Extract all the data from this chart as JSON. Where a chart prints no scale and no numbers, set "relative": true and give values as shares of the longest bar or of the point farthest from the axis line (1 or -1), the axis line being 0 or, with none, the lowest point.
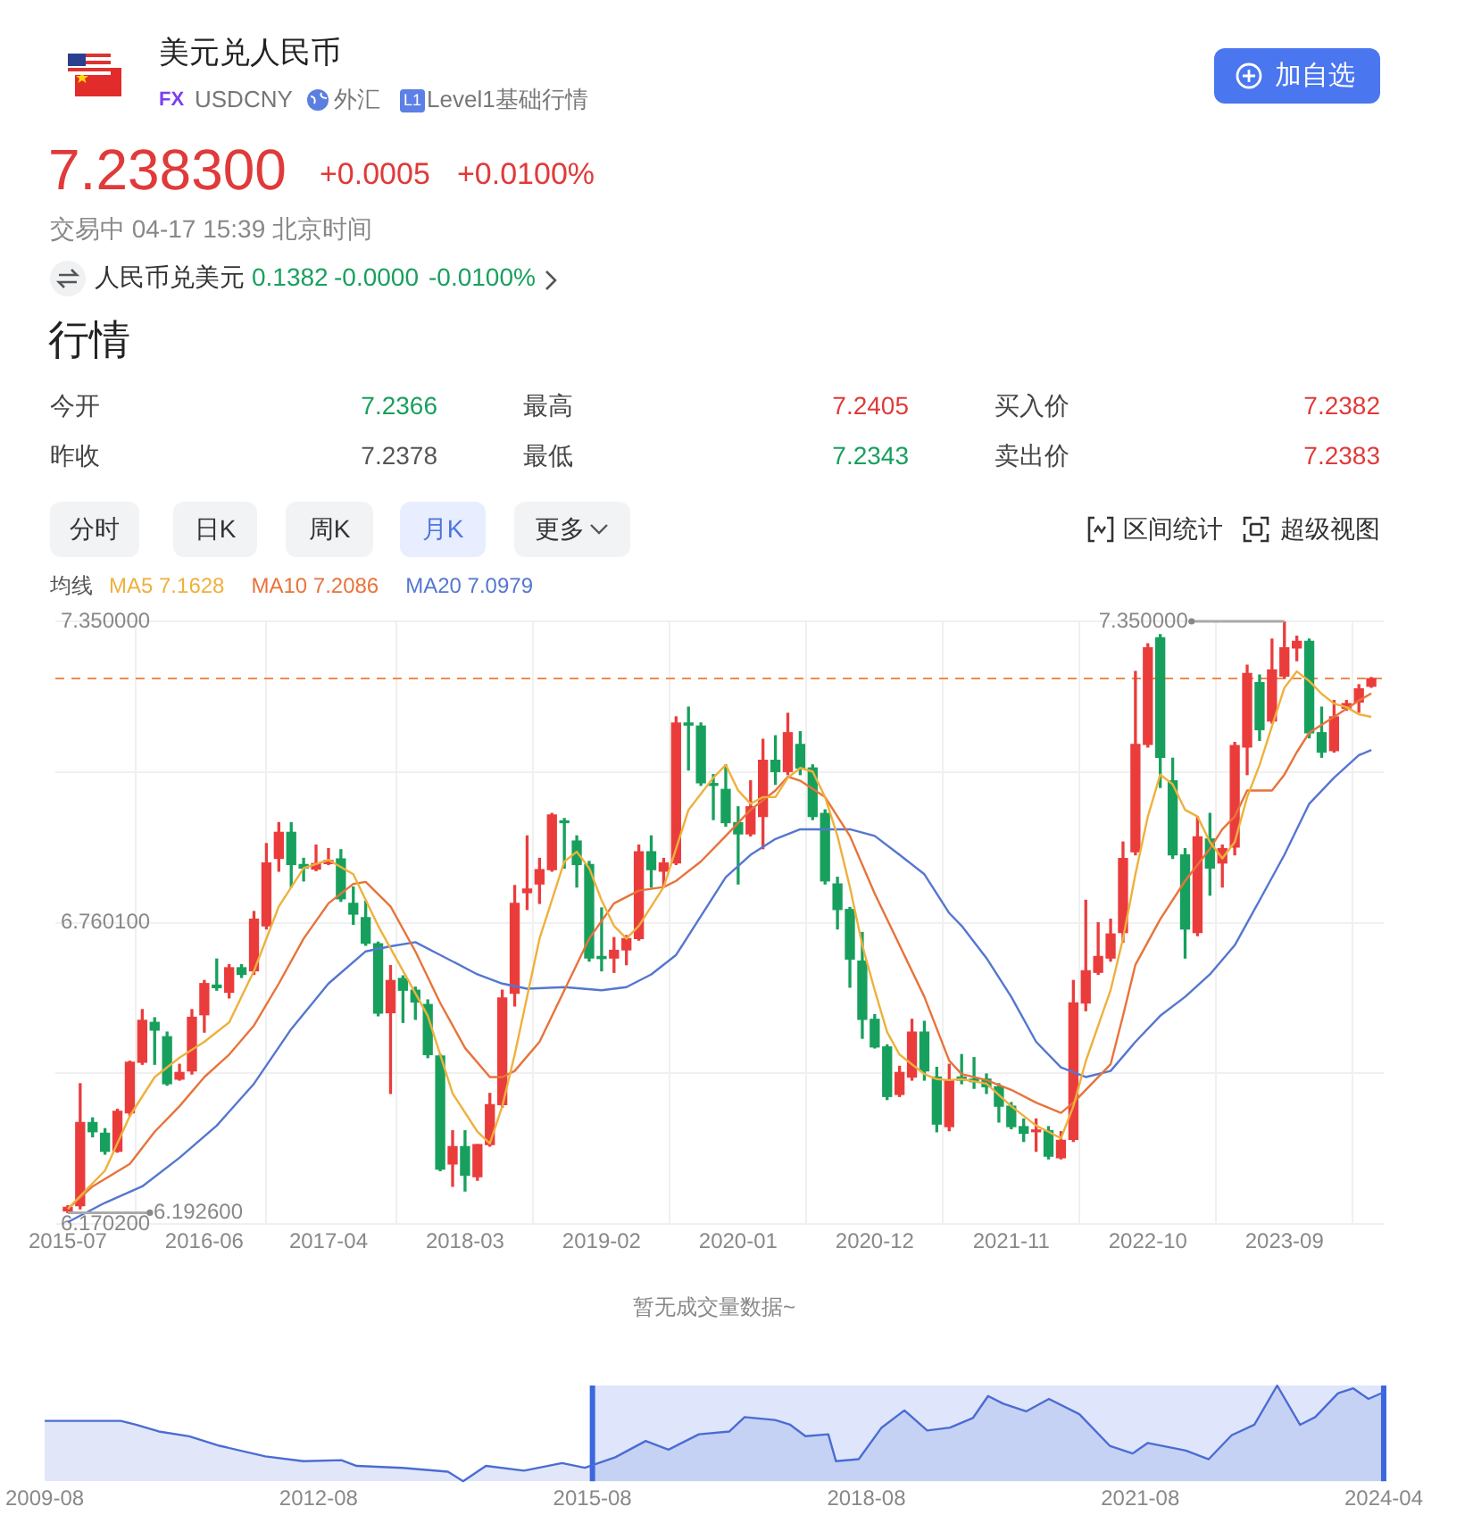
{
  "chart_data": [
    {
      "type": "candlestick",
      "title": "美元兑人民币",
      "annotations": [
        "FX",
        "USDCNY",
        "外汇",
        "L1",
        "Level1基础行情",
        "7.238300",
        "+0.0005",
        "+0.0100%",
        "交易中 04-17 15:39 北京时间",
        "人民币兑美元",
        "0.1382",
        "-0.0000",
        "-0.0100%",
        "行情",
        "今开",
        "7.2366",
        "最高",
        "7.2405",
        "买入价",
        "7.2382",
        "昨收",
        "7.2378",
        "最低",
        "7.2343",
        "卖出价",
        "7.2383",
        "分时",
        "日K",
        "周K",
        "月K",
        "更多",
        "区间统计",
        "超级视图",
        "加自选",
        "均线",
        "暂无成交量数据~",
        {
          "text": "7.350000",
          "x": "2023-09",
          "y": 7.35
        },
        {
          "text": "6.192600",
          "x": "2015-07",
          "y": 6.1926
        }
      ],
      "x": [
        "2015-07",
        "2015-08",
        "2015-09",
        "2015-10",
        "2015-11",
        "2015-12",
        "2016-01",
        "2016-02",
        "2016-03",
        "2016-04",
        "2016-05",
        "2016-06",
        "2016-07",
        "2016-08",
        "2016-09",
        "2016-10",
        "2016-11",
        "2016-12",
        "2017-01",
        "2017-02",
        "2017-03",
        "2017-04",
        "2017-05",
        "2017-06",
        "2017-07",
        "2017-08",
        "2017-09",
        "2017-10",
        "2017-11",
        "2017-12",
        "2018-01",
        "2018-02",
        "2018-03",
        "2018-04",
        "2018-05",
        "2018-06",
        "2018-07",
        "2018-08",
        "2018-09",
        "2018-10",
        "2018-11",
        "2018-12",
        "2019-01",
        "2019-02",
        "2019-03",
        "2019-04",
        "2019-05",
        "2019-06",
        "2019-07",
        "2019-08",
        "2019-09",
        "2019-10",
        "2019-11",
        "2019-12",
        "2020-01",
        "2020-02",
        "2020-03",
        "2020-04",
        "2020-05",
        "2020-06",
        "2020-07",
        "2020-08",
        "2020-09",
        "2020-10",
        "2020-11",
        "2020-12",
        "2021-01",
        "2021-02",
        "2021-03",
        "2021-04",
        "2021-05",
        "2021-06",
        "2021-07",
        "2021-08",
        "2021-09",
        "2021-10",
        "2021-11",
        "2021-12",
        "2022-01",
        "2022-02",
        "2022-03",
        "2022-04",
        "2022-05",
        "2022-06",
        "2022-07",
        "2022-08",
        "2022-09",
        "2022-10",
        "2022-11",
        "2022-12",
        "2023-01",
        "2023-02",
        "2023-03",
        "2023-04",
        "2023-05",
        "2023-06",
        "2023-07",
        "2023-08",
        "2023-09",
        "2023-10",
        "2023-11",
        "2023-12",
        "2024-01",
        "2024-02",
        "2024-03",
        "2024-04"
      ],
      "ohlc": [
        [
          6.196,
          6.206,
          6.1926,
          6.203
        ],
        [
          6.206,
          6.445,
          6.2,
          6.369
        ],
        [
          6.369,
          6.378,
          6.341,
          6.351
        ],
        [
          6.348,
          6.357,
          6.307,
          6.313
        ],
        [
          6.313,
          6.395,
          6.311,
          6.391
        ],
        [
          6.388,
          6.489,
          6.382,
          6.487
        ],
        [
          6.487,
          6.59,
          6.483,
          6.569
        ],
        [
          6.565,
          6.574,
          6.483,
          6.55
        ],
        [
          6.537,
          6.546,
          6.442,
          6.445
        ],
        [
          6.454,
          6.483,
          6.452,
          6.467
        ],
        [
          6.47,
          6.59,
          6.464,
          6.575
        ],
        [
          6.58,
          6.647,
          6.546,
          6.641
        ],
        [
          6.638,
          6.689,
          6.628,
          6.633
        ],
        [
          6.624,
          6.678,
          6.613,
          6.672
        ],
        [
          6.672,
          6.678,
          6.653,
          6.659
        ],
        [
          6.666,
          6.782,
          6.659,
          6.767
        ],
        [
          6.754,
          6.915,
          6.748,
          6.877
        ],
        [
          6.886,
          6.956,
          6.861,
          6.937
        ],
        [
          6.937,
          6.956,
          6.83,
          6.874
        ],
        [
          6.874,
          6.886,
          6.842,
          6.867
        ],
        [
          6.865,
          6.912,
          6.862,
          6.876
        ],
        [
          6.876,
          6.905,
          6.874,
          6.882
        ],
        [
          6.885,
          6.903,
          6.802,
          6.807
        ],
        [
          6.798,
          6.83,
          6.757,
          6.777
        ],
        [
          6.77,
          6.802,
          6.716,
          6.72
        ],
        [
          6.719,
          6.722,
          6.578,
          6.583
        ],
        [
          6.584,
          6.676,
          6.426,
          6.647
        ],
        [
          6.651,
          6.656,
          6.565,
          6.628
        ],
        [
          6.628,
          6.634,
          6.571,
          6.605
        ],
        [
          6.6,
          6.609,
          6.496,
          6.502
        ],
        [
          6.499,
          6.502,
          6.275,
          6.278
        ],
        [
          6.288,
          6.353,
          6.244,
          6.322
        ],
        [
          6.322,
          6.353,
          6.235,
          6.266
        ],
        [
          6.263,
          6.326,
          6.256,
          6.326
        ],
        [
          6.326,
          6.426,
          6.323,
          6.404
        ],
        [
          6.404,
          6.628,
          6.399,
          6.613
        ],
        [
          6.622,
          6.833,
          6.597,
          6.798
        ],
        [
          6.819,
          6.93,
          6.786,
          6.826
        ],
        [
          6.836,
          6.886,
          6.798,
          6.864
        ],
        [
          6.864,
          6.974,
          6.861,
          6.971
        ],
        [
          6.959,
          6.964,
          6.867,
          6.956
        ],
        [
          6.92,
          6.93,
          6.83,
          6.874
        ],
        [
          6.874,
          6.88,
          6.685,
          6.691
        ],
        [
          6.694,
          6.789,
          6.666,
          6.69
        ],
        [
          6.691,
          6.731,
          6.663,
          6.706
        ],
        [
          6.707,
          6.735,
          6.678,
          6.729
        ],
        [
          6.729,
          6.912,
          6.726,
          6.899
        ],
        [
          6.899,
          6.93,
          6.83,
          6.864
        ],
        [
          6.861,
          6.886,
          6.83,
          6.877
        ],
        [
          6.877,
          7.163,
          6.874,
          7.151
        ],
        [
          7.151,
          7.182,
          7.059,
          7.147
        ],
        [
          7.145,
          7.151,
          7.029,
          7.034
        ],
        [
          7.031,
          7.05,
          6.962,
          7.029
        ],
        [
          7.021,
          7.069,
          6.949,
          6.956
        ],
        [
          6.956,
          6.987,
          6.836,
          6.934
        ],
        [
          6.934,
          7.038,
          6.93,
          6.987
        ],
        [
          6.968,
          7.119,
          6.905,
          7.078
        ],
        [
          7.078,
          7.126,
          7.031,
          7.056
        ],
        [
          7.056,
          7.17,
          7.05,
          7.132
        ],
        [
          7.109,
          7.134,
          7.05,
          7.063
        ],
        [
          7.063,
          7.069,
          6.962,
          6.968
        ],
        [
          6.974,
          6.981,
          6.836,
          6.842
        ],
        [
          6.836,
          6.849,
          6.748,
          6.786
        ],
        [
          6.786,
          6.79,
          6.634,
          6.689
        ],
        [
          6.685,
          6.741,
          6.534,
          6.571
        ],
        [
          6.571,
          6.58,
          6.515,
          6.517
        ],
        [
          6.517,
          6.521,
          6.414,
          6.42
        ],
        [
          6.424,
          6.479,
          6.42,
          6.467
        ],
        [
          6.458,
          6.571,
          6.452,
          6.546
        ],
        [
          6.546,
          6.567,
          6.452,
          6.47
        ],
        [
          6.458,
          6.477,
          6.351,
          6.366
        ],
        [
          6.361,
          6.483,
          6.353,
          6.452
        ],
        [
          6.458,
          6.502,
          6.445,
          6.452
        ],
        [
          6.454,
          6.496,
          6.436,
          6.449
        ],
        [
          6.454,
          6.464,
          6.426,
          6.439
        ],
        [
          6.439,
          6.445,
          6.37,
          6.401
        ],
        [
          6.401,
          6.408,
          6.357,
          6.361
        ],
        [
          6.361,
          6.376,
          6.332,
          6.348
        ],
        [
          6.351,
          6.376,
          6.313,
          6.353
        ],
        [
          6.353,
          6.361,
          6.298,
          6.303
        ],
        [
          6.3,
          6.351,
          6.298,
          6.334
        ],
        [
          6.336,
          6.647,
          6.332,
          6.603
        ],
        [
          6.603,
          6.804,
          6.588,
          6.666
        ],
        [
          6.663,
          6.76,
          6.659,
          6.694
        ],
        [
          6.691,
          6.767,
          6.685,
          6.738
        ],
        [
          6.741,
          6.918,
          6.722,
          6.886
        ],
        [
          6.899,
          7.252,
          6.893,
          7.109
        ],
        [
          7.109,
          7.306,
          7.104,
          7.298
        ],
        [
          7.318,
          7.324,
          7.025,
          7.084
        ],
        [
          7.038,
          7.082,
          6.886,
          6.893
        ],
        [
          6.893,
          6.905,
          6.691,
          6.748
        ],
        [
          6.741,
          6.968,
          6.735,
          6.928
        ],
        [
          6.924,
          6.974,
          6.814,
          6.867
        ],
        [
          6.877,
          6.912,
          6.83,
          6.905
        ],
        [
          6.908,
          7.113,
          6.893,
          7.107
        ],
        [
          7.104,
          7.264,
          7.05,
          7.248
        ],
        [
          7.23,
          7.245,
          7.117,
          7.138
        ],
        [
          7.155,
          7.315,
          7.151,
          7.255
        ],
        [
          7.243,
          7.35,
          7.239,
          7.298
        ],
        [
          7.298,
          7.321,
          7.273,
          7.311
        ],
        [
          7.311,
          7.315,
          7.122,
          7.132
        ],
        [
          7.132,
          7.182,
          7.084,
          7.094
        ],
        [
          7.097,
          7.195,
          7.094,
          7.163
        ],
        [
          7.18,
          7.195,
          7.176,
          7.189
        ],
        [
          7.192,
          7.226,
          7.172,
          7.218
        ],
        [
          7.223,
          7.24,
          7.221,
          7.238
        ]
      ],
      "colors": [
        "#eb3c3c",
        "#eb3c3c",
        "#17a05d",
        "#17a05d",
        "#eb3c3c",
        "#eb3c3c",
        "#eb3c3c",
        "#17a05d",
        "#17a05d",
        "#eb3c3c",
        "#eb3c3c",
        "#eb3c3c",
        "#17a05d",
        "#eb3c3c",
        "#17a05d",
        "#eb3c3c",
        "#eb3c3c",
        "#eb3c3c",
        "#17a05d",
        "#17a05d",
        "#eb3c3c",
        "#eb3c3c",
        "#17a05d",
        "#17a05d",
        "#17a05d",
        "#17a05d",
        "#eb3c3c",
        "#17a05d",
        "#17a05d",
        "#17a05d",
        "#17a05d",
        "#eb3c3c",
        "#17a05d",
        "#eb3c3c",
        "#eb3c3c",
        "#eb3c3c",
        "#eb3c3c",
        "#eb3c3c",
        "#eb3c3c",
        "#eb3c3c",
        "#17a05d",
        "#17a05d",
        "#17a05d",
        "#17a05d",
        "#eb3c3c",
        "#eb3c3c",
        "#eb3c3c",
        "#17a05d",
        "#eb3c3c",
        "#eb3c3c",
        "#17a05d",
        "#17a05d",
        "#17a05d",
        "#17a05d",
        "#17a05d",
        "#eb3c3c",
        "#eb3c3c",
        "#17a05d",
        "#eb3c3c",
        "#17a05d",
        "#17a05d",
        "#17a05d",
        "#17a05d",
        "#17a05d",
        "#17a05d",
        "#17a05d",
        "#17a05d",
        "#eb3c3c",
        "#eb3c3c",
        "#17a05d",
        "#17a05d",
        "#eb3c3c",
        "#17a05d",
        "#17a05d",
        "#17a05d",
        "#17a05d",
        "#17a05d",
        "#17a05d",
        "#eb3c3c",
        "#17a05d",
        "#eb3c3c",
        "#eb3c3c",
        "#eb3c3c",
        "#eb3c3c",
        "#eb3c3c",
        "#eb3c3c",
        "#eb3c3c",
        "#eb3c3c",
        "#17a05d",
        "#17a05d",
        "#17a05d",
        "#eb3c3c",
        "#17a05d",
        "#eb3c3c",
        "#eb3c3c",
        "#eb3c3c",
        "#17a05d",
        "#eb3c3c",
        "#eb3c3c",
        "#eb3c3c",
        "#17a05d",
        "#17a05d",
        "#eb3c3c",
        "#eb3c3c",
        "#eb3c3c",
        "#eb3c3c"
      ],
      "series": [
        {
          "type": "line",
          "name": "MA5 7.1628",
          "color": "#eeb13c",
          "x": [
            "2015-07",
            "2015-10",
            "2015-12",
            "2016-02",
            "2016-04",
            "2016-06",
            "2016-08",
            "2016-10",
            "2016-12",
            "2017-02",
            "2017-04",
            "2017-06",
            "2017-08",
            "2017-10",
            "2017-12",
            "2018-02",
            "2018-04",
            "2018-05",
            "2018-06",
            "2018-07",
            "2018-09",
            "2018-11",
            "2018-12",
            "2019-01",
            "2019-02",
            "2019-03",
            "2019-04",
            "2019-05",
            "2019-06",
            "2019-07",
            "2019-08",
            "2019-09",
            "2019-11",
            "2019-12",
            "2020-01",
            "2020-02",
            "2020-03",
            "2020-04",
            "2020-05",
            "2020-06",
            "2020-07",
            "2020-08",
            "2020-09",
            "2020-10",
            "2020-11",
            "2020-12",
            "2021-01",
            "2021-02",
            "2021-03",
            "2021-04",
            "2021-05",
            "2021-06",
            "2021-07",
            "2021-09",
            "2021-11",
            "2022-01",
            "2022-02",
            "2022-03",
            "2022-04",
            "2022-05",
            "2022-07",
            "2022-08",
            "2022-09",
            "2022-10",
            "2022-11",
            "2022-12",
            "2023-01",
            "2023-02",
            "2023-03",
            "2023-04",
            "2023-05",
            "2023-06",
            "2023-07",
            "2023-08",
            "2023-09",
            "2023-10",
            "2023-11",
            "2023-12",
            "2024-01",
            "2024-02",
            "2024-03",
            "2024-04"
          ],
          "values": [
            6.2,
            6.275,
            6.382,
            6.458,
            6.496,
            6.527,
            6.565,
            6.666,
            6.792,
            6.867,
            6.883,
            6.855,
            6.754,
            6.666,
            6.578,
            6.426,
            6.351,
            6.328,
            6.401,
            6.502,
            6.729,
            6.88,
            6.899,
            6.867,
            6.804,
            6.754,
            6.729,
            6.754,
            6.792,
            6.83,
            6.905,
            6.981,
            7.044,
            7.069,
            7.019,
            6.993,
            7.006,
            7.006,
            7.044,
            7.063,
            7.056,
            7.006,
            6.93,
            6.83,
            6.716,
            6.628,
            6.546,
            6.502,
            6.483,
            6.464,
            6.454,
            6.452,
            6.454,
            6.445,
            6.401,
            6.363,
            6.351,
            6.338,
            6.401,
            6.489,
            6.628,
            6.729,
            6.855,
            6.968,
            7.05,
            7.031,
            6.981,
            6.968,
            6.918,
            6.886,
            6.918,
            7.006,
            7.069,
            7.145,
            7.22,
            7.252,
            7.233,
            7.208,
            7.189,
            7.182,
            7.168,
            7.163
          ]
        },
        {
          "type": "line",
          "name": "MA10 7.2086",
          "color": "#e8733a",
          "x": [
            "2015-07",
            "2015-09",
            "2015-12",
            "2016-02",
            "2016-04",
            "2016-06",
            "2016-08",
            "2016-10",
            "2016-12",
            "2017-02",
            "2017-04",
            "2017-06",
            "2017-07",
            "2017-09",
            "2017-11",
            "2018-01",
            "2018-03",
            "2018-05",
            "2018-06",
            "2018-07",
            "2018-09",
            "2018-11",
            "2019-01",
            "2019-03",
            "2019-05",
            "2019-07",
            "2019-08",
            "2019-10",
            "2019-12",
            "2020-02",
            "2020-04",
            "2020-05",
            "2020-06",
            "2020-08",
            "2020-10",
            "2020-12",
            "2021-02",
            "2021-04",
            "2021-06",
            "2021-07",
            "2021-09",
            "2021-11",
            "2022-01",
            "2022-03",
            "2022-04",
            "2022-05",
            "2022-07",
            "2022-08",
            "2022-09",
            "2022-11",
            "2023-01",
            "2023-03",
            "2023-04",
            "2023-05",
            "2023-06",
            "2023-08",
            "2023-09",
            "2023-10",
            "2023-11",
            "2024-01",
            "2024-03",
            "2024-04"
          ],
          "values": [
            6.2,
            6.244,
            6.288,
            6.351,
            6.401,
            6.458,
            6.502,
            6.559,
            6.641,
            6.729,
            6.798,
            6.836,
            6.84,
            6.792,
            6.704,
            6.603,
            6.515,
            6.458,
            6.458,
            6.47,
            6.527,
            6.628,
            6.729,
            6.798,
            6.823,
            6.83,
            6.842,
            6.88,
            6.93,
            6.981,
            7.019,
            7.046,
            7.038,
            7.006,
            6.93,
            6.817,
            6.716,
            6.615,
            6.49,
            6.464,
            6.452,
            6.433,
            6.408,
            6.388,
            6.408,
            6.433,
            6.483,
            6.578,
            6.678,
            6.767,
            6.842,
            6.905,
            6.943,
            6.968,
            7.019,
            7.019,
            7.05,
            7.094,
            7.132,
            7.163,
            7.195,
            7.209
          ]
        },
        {
          "type": "line",
          "name": "MA20 7.0979",
          "color": "#5576d0",
          "x": [
            "2015-07",
            "2015-10",
            "2016-01",
            "2016-04",
            "2016-07",
            "2016-10",
            "2017-01",
            "2017-04",
            "2017-07",
            "2017-09",
            "2017-11",
            "2018-01",
            "2018-04",
            "2018-06",
            "2018-08",
            "2018-11",
            "2019-02",
            "2019-04",
            "2019-06",
            "2019-08",
            "2019-10",
            "2019-12",
            "2020-02",
            "2020-04",
            "2020-06",
            "2020-08",
            "2020-10",
            "2020-12",
            "2021-02",
            "2021-04",
            "2021-06",
            "2021-07",
            "2021-09",
            "2021-11",
            "2022-01",
            "2022-03",
            "2022-05",
            "2022-07",
            "2022-09",
            "2022-11",
            "2023-01",
            "2023-03",
            "2023-05",
            "2023-07",
            "2023-09",
            "2023-11",
            "2024-01",
            "2024-03",
            "2024-04"
          ],
          "values": [
            6.174,
            6.212,
            6.244,
            6.3,
            6.363,
            6.445,
            6.552,
            6.641,
            6.704,
            6.714,
            6.722,
            6.697,
            6.659,
            6.641,
            6.631,
            6.634,
            6.628,
            6.634,
            6.659,
            6.697,
            6.773,
            6.849,
            6.893,
            6.924,
            6.943,
            6.943,
            6.943,
            6.93,
            6.893,
            6.855,
            6.779,
            6.754,
            6.691,
            6.615,
            6.527,
            6.477,
            6.458,
            6.47,
            6.527,
            6.578,
            6.615,
            6.659,
            6.716,
            6.804,
            6.893,
            6.993,
            7.044,
            7.088,
            7.098
          ]
        }
      ],
      "xlim": [
        "2015-06",
        "2024-05"
      ],
      "xticks": [
        "2015-07",
        "2016-06",
        "2017-04",
        "2018-03",
        "2019-02",
        "2020-01",
        "2020-12",
        "2021-11",
        "2022-10",
        "2023-09"
      ],
      "ylim": [
        6.1702,
        7.35
      ],
      "yticks": [
        {
          "value": 6.1702,
          "label": "6.170200"
        },
        {
          "value": 6.46515,
          "label": null
        },
        {
          "value": 6.7601,
          "label": "6.760100"
        },
        {
          "value": 7.05505,
          "label": null
        },
        {
          "value": 7.35,
          "label": "7.350000"
        }
      ],
      "grid": true,
      "legend": "top left",
      "marker": "none",
      "ref_lines": [
        {
          "axis": "y",
          "value": 7.2383,
          "color": "#f08a4b",
          "line_style": "dashed"
        }
      ]
    },
    {
      "type": "area",
      "relative": true,
      "x": [
        "2009-08",
        "2010-06",
        "2010-08",
        "2010-11",
        "2011-03",
        "2011-07",
        "2012-01",
        "2012-06",
        "2012-11",
        "2013-01",
        "2013-07",
        "2014-01",
        "2014-03",
        "2014-06",
        "2014-11",
        "2015-04",
        "2015-07",
        "2015-11",
        "2016-03",
        "2016-06",
        "2016-10",
        "2017-02",
        "2017-04",
        "2017-08",
        "2017-10",
        "2017-12",
        "2018-03",
        "2018-04",
        "2018-07",
        "2018-10",
        "2019-01",
        "2019-04",
        "2019-07",
        "2019-10",
        "2019-12",
        "2020-02",
        "2020-05",
        "2020-08",
        "2020-12",
        "2021-04",
        "2021-07",
        "2021-09",
        "2022-02",
        "2022-05",
        "2022-08",
        "2022-11",
        "2023-02",
        "2023-05",
        "2023-07",
        "2023-10",
        "2023-12",
        "2024-02",
        "2024-04"
      ],
      "series": [
        {
          "color": "#4a6cd4",
          "values": [
            0.63,
            0.63,
            0.59,
            0.52,
            0.47,
            0.37,
            0.26,
            0.21,
            0.22,
            0.16,
            0.14,
            0.1,
            0,
            0.16,
            0.11,
            0.19,
            0.14,
            0.25,
            0.42,
            0.33,
            0.49,
            0.52,
            0.67,
            0.64,
            0.59,
            0.47,
            0.49,
            0.21,
            0.23,
            0.56,
            0.74,
            0.53,
            0.56,
            0.66,
            0.89,
            0.81,
            0.73,
            0.86,
            0.7,
            0.37,
            0.29,
            0.4,
            0.32,
            0.23,
            0.48,
            0.59,
            1,
            0.59,
            0.67,
            0.92,
            0.97,
            0.86,
            0.93
          ]
        }
      ],
      "xlim": [
        "2009-08",
        "2024-04"
      ],
      "xticks": [
        "2009-08",
        "2012-08",
        "2015-08",
        "2018-08",
        "2021-08",
        "2024-04"
      ],
      "tick_labels": "x",
      "marker": "none",
      "bands": [
        {
          "axis": "x",
          "from": "2015-08",
          "to": "2024-04",
          "color": "#dfe6fb"
        }
      ],
      "ref_lines": [
        {
          "axis": "x",
          "value": "2015-08",
          "color": "#3b66dd"
        },
        {
          "axis": "x",
          "value": "2024-04",
          "color": "#3b66dd"
        }
      ]
    }
  ]
}
